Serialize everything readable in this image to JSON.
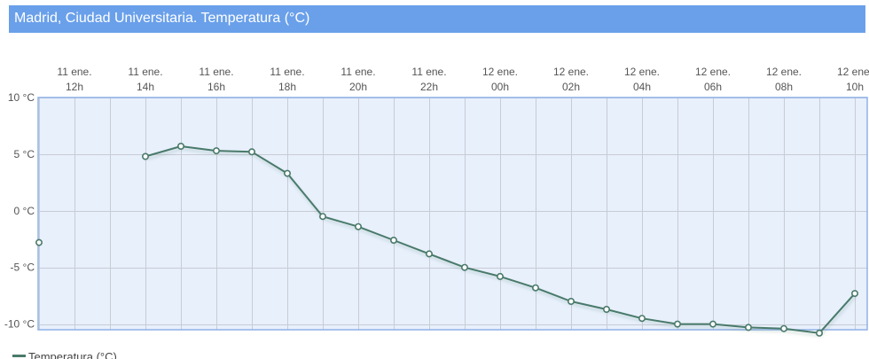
{
  "header": {
    "title": "Madrid, Ciudad Universitaria. Temperatura (°C)"
  },
  "legend": {
    "label": "Temperatura (°C)"
  },
  "colors": {
    "title_bar": "#6aa0ea",
    "plot_background": "#e8f0fc",
    "plot_border": "#8fb0e6",
    "series_line": "#4a7a6a",
    "grid": "#c8ccd4"
  },
  "chart_data": {
    "type": "line",
    "title": "Madrid, Ciudad Universitaria. Temperatura (°C)",
    "xlabel": "",
    "ylabel": "",
    "ylim": [
      -10.5,
      10
    ],
    "yticks": [
      10,
      5,
      0,
      -5,
      -10
    ],
    "ytick_labels": [
      "10 °C",
      "5 °C",
      "0 °C",
      "-5 °C",
      "-10 °C"
    ],
    "xticks": [
      {
        "time": "2023-01-11 12:00",
        "line1": "11 ene.",
        "line2": "12h"
      },
      {
        "time": "2023-01-11 14:00",
        "line1": "11 ene.",
        "line2": "14h"
      },
      {
        "time": "2023-01-11 16:00",
        "line1": "11 ene.",
        "line2": "16h"
      },
      {
        "time": "2023-01-11 18:00",
        "line1": "11 ene.",
        "line2": "18h"
      },
      {
        "time": "2023-01-11 20:00",
        "line1": "11 ene.",
        "line2": "20h"
      },
      {
        "time": "2023-01-11 22:00",
        "line1": "11 ene.",
        "line2": "22h"
      },
      {
        "time": "2023-01-12 00:00",
        "line1": "12 ene.",
        "line2": "00h"
      },
      {
        "time": "2023-01-12 02:00",
        "line1": "12 ene.",
        "line2": "02h"
      },
      {
        "time": "2023-01-12 04:00",
        "line1": "12 ene.",
        "line2": "04h"
      },
      {
        "time": "2023-01-12 06:00",
        "line1": "12 ene.",
        "line2": "06h"
      },
      {
        "time": "2023-01-12 08:00",
        "line1": "12 ene.",
        "line2": "08h"
      },
      {
        "time": "2023-01-12 10:00",
        "line1": "12 ene.",
        "line2": "10h"
      }
    ],
    "grid": true,
    "legend_position": "bottom-left",
    "series": [
      {
        "name": "Temperatura (°C)",
        "points": [
          {
            "time": "2023-01-11 11:00",
            "value": -2.8
          },
          {
            "time": "2023-01-11 14:00",
            "value": 4.8
          },
          {
            "time": "2023-01-11 15:00",
            "value": 5.7
          },
          {
            "time": "2023-01-11 16:00",
            "value": 5.3
          },
          {
            "time": "2023-01-11 17:00",
            "value": 5.2
          },
          {
            "time": "2023-01-11 18:00",
            "value": 3.3
          },
          {
            "time": "2023-01-11 19:00",
            "value": -0.5
          },
          {
            "time": "2023-01-11 20:00",
            "value": -1.4
          },
          {
            "time": "2023-01-11 21:00",
            "value": -2.6
          },
          {
            "time": "2023-01-11 22:00",
            "value": -3.8
          },
          {
            "time": "2023-01-11 23:00",
            "value": -5.0
          },
          {
            "time": "2023-01-12 00:00",
            "value": -5.8
          },
          {
            "time": "2023-01-12 01:00",
            "value": -6.8
          },
          {
            "time": "2023-01-12 02:00",
            "value": -8.0
          },
          {
            "time": "2023-01-12 03:00",
            "value": -8.7
          },
          {
            "time": "2023-01-12 04:00",
            "value": -9.5
          },
          {
            "time": "2023-01-12 05:00",
            "value": -10.0
          },
          {
            "time": "2023-01-12 06:00",
            "value": -10.0
          },
          {
            "time": "2023-01-12 07:00",
            "value": -10.3
          },
          {
            "time": "2023-01-12 08:00",
            "value": -10.4
          },
          {
            "time": "2023-01-12 09:00",
            "value": -10.8
          },
          {
            "time": "2023-01-12 10:00",
            "value": -7.3
          }
        ]
      }
    ]
  }
}
